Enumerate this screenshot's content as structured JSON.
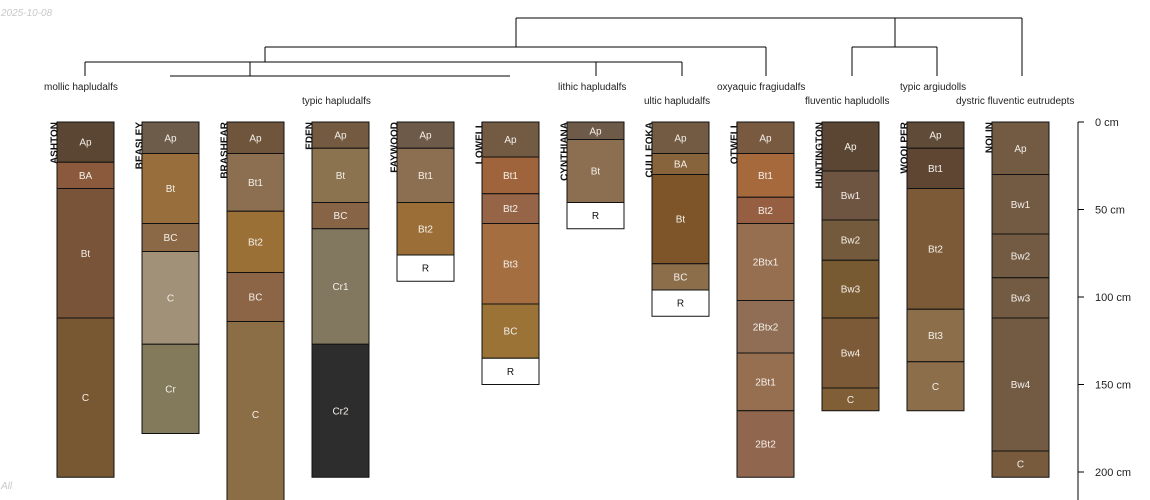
{
  "header": {
    "date": "2025-10-08",
    "footer_note": "All"
  },
  "chart_data": {
    "type": "soil-profile-sketch",
    "title": "",
    "depth_axis": {
      "unit": "cm",
      "range": [
        0,
        220
      ],
      "ticks": [
        0,
        50,
        100,
        150,
        200
      ],
      "tick_labels": [
        "0 cm",
        "50 cm",
        "100 cm",
        "150 cm",
        "200 cm"
      ]
    },
    "taxonomy_labels": [
      "mollic hapludalfs",
      "typic hapludalfs",
      "lithic hapludalfs",
      "ultic hapludalfs",
      "oxyaquic fragiudalfs",
      "fluventic hapludolls",
      "typic argiudolls",
      "dystric fluventic eutrudepts"
    ],
    "profiles": [
      {
        "name": "ASHTON",
        "horizons": [
          {
            "name": "Ap",
            "top": 0,
            "bottom": 23,
            "color": "#5a4632"
          },
          {
            "name": "BA",
            "top": 23,
            "bottom": 38,
            "color": "#8b5a3c"
          },
          {
            "name": "Bt",
            "top": 38,
            "bottom": 112,
            "color": "#7a5438"
          },
          {
            "name": "C",
            "top": 112,
            "bottom": 203,
            "color": "#785832"
          }
        ]
      },
      {
        "name": "BEASLEY",
        "horizons": [
          {
            "name": "Ap",
            "top": 0,
            "bottom": 18,
            "color": "#6e5c4b"
          },
          {
            "name": "Bt",
            "top": 18,
            "bottom": 58,
            "color": "#986e3c"
          },
          {
            "name": "BC",
            "top": 58,
            "bottom": 74,
            "color": "#8b6946"
          },
          {
            "name": "C",
            "top": 74,
            "bottom": 127,
            "color": "#a09178"
          },
          {
            "name": "Cr",
            "top": 127,
            "bottom": 178,
            "color": "#827a5a"
          }
        ]
      },
      {
        "name": "BRASHEAR",
        "horizons": [
          {
            "name": "Ap",
            "top": 0,
            "bottom": 18,
            "color": "#6e553c"
          },
          {
            "name": "Bt1",
            "top": 18,
            "bottom": 51,
            "color": "#8c6e50"
          },
          {
            "name": "Bt2",
            "top": 51,
            "bottom": 86,
            "color": "#9b7037"
          },
          {
            "name": "BC",
            "top": 86,
            "bottom": 114,
            "color": "#8c6446"
          },
          {
            "name": "C",
            "top": 114,
            "bottom": 220,
            "color": "#8c6e46"
          }
        ]
      },
      {
        "name": "EDEN",
        "horizons": [
          {
            "name": "Ap",
            "top": 0,
            "bottom": 15,
            "color": "#735a40"
          },
          {
            "name": "Bt",
            "top": 15,
            "bottom": 46,
            "color": "#8c7350"
          },
          {
            "name": "BC",
            "top": 46,
            "bottom": 61,
            "color": "#876446"
          },
          {
            "name": "Cr1",
            "top": 61,
            "bottom": 127,
            "color": "#827860"
          },
          {
            "name": "Cr2",
            "top": 127,
            "bottom": 203,
            "color": "#2d2d2d"
          }
        ]
      },
      {
        "name": "FAYWOOD",
        "horizons": [
          {
            "name": "Ap",
            "top": 0,
            "bottom": 15,
            "color": "#6e5a48"
          },
          {
            "name": "Bt1",
            "top": 15,
            "bottom": 46,
            "color": "#8c6e50"
          },
          {
            "name": "Bt2",
            "top": 46,
            "bottom": 76,
            "color": "#9b6e37"
          },
          {
            "name": "R",
            "top": 76,
            "bottom": 91,
            "color": "#ffffff"
          }
        ]
      },
      {
        "name": "LOWELL",
        "horizons": [
          {
            "name": "Ap",
            "top": 0,
            "bottom": 20,
            "color": "#735a43"
          },
          {
            "name": "Bt1",
            "top": 20,
            "bottom": 41,
            "color": "#a0643c"
          },
          {
            "name": "Bt2",
            "top": 41,
            "bottom": 58,
            "color": "#966446"
          },
          {
            "name": "Bt3",
            "top": 58,
            "bottom": 104,
            "color": "#a56e41"
          },
          {
            "name": "BC",
            "top": 104,
            "bottom": 135,
            "color": "#9b7337"
          },
          {
            "name": "R",
            "top": 135,
            "bottom": 150,
            "color": "#ffffff"
          }
        ]
      },
      {
        "name": "CYNTHIANA",
        "horizons": [
          {
            "name": "Ap",
            "top": 0,
            "bottom": 10,
            "color": "#6e5a48"
          },
          {
            "name": "Bt",
            "top": 10,
            "bottom": 46,
            "color": "#8c6e50"
          },
          {
            "name": "R",
            "top": 46,
            "bottom": 61,
            "color": "#ffffff"
          }
        ]
      },
      {
        "name": "CULLEOKA",
        "horizons": [
          {
            "name": "Ap",
            "top": 0,
            "bottom": 18,
            "color": "#735a43"
          },
          {
            "name": "BA",
            "top": 18,
            "bottom": 30,
            "color": "#87643c"
          },
          {
            "name": "Bt",
            "top": 30,
            "bottom": 81,
            "color": "#7d5528"
          },
          {
            "name": "BC",
            "top": 81,
            "bottom": 96,
            "color": "#8c6e4b"
          },
          {
            "name": "R",
            "top": 96,
            "bottom": 111,
            "color": "#ffffff"
          }
        ]
      },
      {
        "name": "OTWELL",
        "horizons": [
          {
            "name": "Ap",
            "top": 0,
            "bottom": 18,
            "color": "#785a40"
          },
          {
            "name": "Bt1",
            "top": 18,
            "bottom": 43,
            "color": "#a5693c"
          },
          {
            "name": "Bt2",
            "top": 43,
            "bottom": 58,
            "color": "#965f41"
          },
          {
            "name": "2Btx1",
            "top": 58,
            "bottom": 102,
            "color": "#966e50"
          },
          {
            "name": "2Btx2",
            "top": 102,
            "bottom": 132,
            "color": "#8f6e55"
          },
          {
            "name": "2Bt1",
            "top": 132,
            "bottom": 165,
            "color": "#966e50"
          },
          {
            "name": "2Bt2",
            "top": 165,
            "bottom": 203,
            "color": "#91664e"
          }
        ]
      },
      {
        "name": "HUNTINGTON",
        "horizons": [
          {
            "name": "Ap",
            "top": 0,
            "bottom": 28,
            "color": "#5a4632"
          },
          {
            "name": "Bw1",
            "top": 28,
            "bottom": 56,
            "color": "#6e5541"
          },
          {
            "name": "Bw2",
            "top": 56,
            "bottom": 79,
            "color": "#735a3c"
          },
          {
            "name": "Bw3",
            "top": 79,
            "bottom": 112,
            "color": "#785a32"
          },
          {
            "name": "Bw4",
            "top": 112,
            "bottom": 152,
            "color": "#7d5a37"
          },
          {
            "name": "C",
            "top": 152,
            "bottom": 165,
            "color": "#805f37"
          }
        ]
      },
      {
        "name": "WOOLPER",
        "horizons": [
          {
            "name": "Ap",
            "top": 0,
            "bottom": 15,
            "color": "#5f4b37"
          },
          {
            "name": "Bt1",
            "top": 15,
            "bottom": 38,
            "color": "#5f4632"
          },
          {
            "name": "Bt2",
            "top": 38,
            "bottom": 107,
            "color": "#7d5a37"
          },
          {
            "name": "Bt3",
            "top": 107,
            "bottom": 137,
            "color": "#8c6e4b"
          },
          {
            "name": "C",
            "top": 137,
            "bottom": 165,
            "color": "#8c6e4b"
          }
        ]
      },
      {
        "name": "NOLIN",
        "horizons": [
          {
            "name": "Ap",
            "top": 0,
            "bottom": 30,
            "color": "#735a43"
          },
          {
            "name": "Bw1",
            "top": 30,
            "bottom": 64,
            "color": "#735a43"
          },
          {
            "name": "Bw2",
            "top": 64,
            "bottom": 89,
            "color": "#735a43"
          },
          {
            "name": "Bw3",
            "top": 89,
            "bottom": 112,
            "color": "#735a43"
          },
          {
            "name": "Bw4",
            "top": 112,
            "bottom": 188,
            "color": "#735a43"
          },
          {
            "name": "C",
            "top": 188,
            "bottom": 203,
            "color": "#785a3c"
          }
        ]
      }
    ]
  }
}
